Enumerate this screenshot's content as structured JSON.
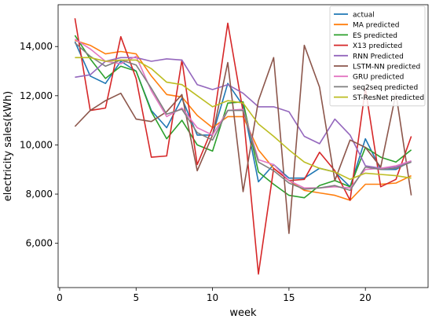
{
  "chart_data": {
    "type": "line",
    "xlabel": "week",
    "ylabel": "electricity sales(kWh)",
    "xlim": [
      -0.1,
      24.1
    ],
    "ylim": [
      4200,
      15700
    ],
    "xticks": [
      0,
      5,
      10,
      15,
      20
    ],
    "yticks": [
      6000,
      8000,
      10000,
      12000,
      14000
    ],
    "xtick_labels": [
      "0",
      "5",
      "10",
      "15",
      "20"
    ],
    "ytick_labels": [
      "6,000",
      "8,000",
      "10,000",
      "12,000",
      "14,000"
    ],
    "grid": false,
    "legend_position": "top-right",
    "x": [
      1,
      2,
      3,
      4,
      5,
      6,
      7,
      8,
      9,
      10,
      11,
      12,
      13,
      14,
      15,
      16,
      17,
      18,
      19,
      20,
      21,
      22,
      23
    ],
    "series": [
      {
        "name": "actual",
        "color": "#1f77b4",
        "values": [
          14200,
          12800,
          12500,
          13400,
          13000,
          11400,
          10700,
          11900,
          10400,
          10400,
          12500,
          11600,
          8500,
          9200,
          8650,
          8650,
          9050,
          8900,
          8300,
          10250,
          9000,
          9000,
          9350
        ]
      },
      {
        "name": "MA predicted",
        "color": "#ff7f0e",
        "values": [
          14250,
          14050,
          13700,
          13800,
          13700,
          12800,
          12050,
          11950,
          11200,
          10700,
          11150,
          11150,
          9800,
          9050,
          8550,
          8150,
          8050,
          7950,
          7750,
          8400,
          8400,
          8450,
          8750
        ]
      },
      {
        "name": "ES predicted",
        "color": "#2ca02c",
        "values": [
          14450,
          13500,
          12700,
          13200,
          13000,
          11350,
          10250,
          11000,
          10000,
          9750,
          11700,
          11750,
          8900,
          8400,
          7950,
          7850,
          8350,
          8550,
          8300,
          9900,
          9500,
          9300,
          9800
        ]
      },
      {
        "name": "X13 predicted",
        "color": "#d62728",
        "values": [
          15150,
          11400,
          11500,
          14400,
          12700,
          9500,
          9550,
          13450,
          9200,
          10700,
          14950,
          11350,
          4750,
          9050,
          8550,
          8600,
          9700,
          8950,
          7750,
          12300,
          8300,
          8600,
          10350
        ]
      },
      {
        "name": "RNN Predicted",
        "color": "#9467bd",
        "values": [
          12750,
          12850,
          13400,
          13550,
          13550,
          13400,
          13500,
          13450,
          12450,
          12250,
          12450,
          12100,
          11550,
          11550,
          11350,
          10350,
          10050,
          11050,
          10400,
          9150,
          9050,
          9100,
          9300
        ]
      },
      {
        "name": "LSTM-NN predicted",
        "color": "#8c564b",
        "values": [
          10750,
          11400,
          11800,
          12100,
          11050,
          10950,
          11350,
          12050,
          8950,
          10400,
          13350,
          8100,
          11800,
          13550,
          6400,
          14050,
          12350,
          8550,
          10200,
          9900,
          9100,
          12100,
          7950
        ]
      },
      {
        "name": "GRU predicted",
        "color": "#e377c2",
        "values": [
          14300,
          13900,
          13400,
          13300,
          13600,
          12200,
          11150,
          11500,
          10700,
          10400,
          11400,
          11450,
          9400,
          9200,
          8550,
          8250,
          8250,
          8300,
          8250,
          9000,
          9050,
          9150,
          9350
        ]
      },
      {
        "name": "seq2seq predicted",
        "color": "#7f7f7f",
        "values": [
          14150,
          13600,
          13200,
          13450,
          13250,
          12300,
          11250,
          11450,
          10500,
          10200,
          11400,
          11400,
          9300,
          8950,
          8450,
          8200,
          8250,
          8350,
          8150,
          9100,
          9000,
          9050,
          9300
        ]
      },
      {
        "name": "ST-ResNet predicted",
        "color": "#bcbd22",
        "values": [
          13550,
          13550,
          13400,
          13450,
          13450,
          13100,
          12550,
          12450,
          12000,
          11550,
          11800,
          11700,
          10850,
          10350,
          9800,
          9300,
          9050,
          8900,
          8600,
          8850,
          8800,
          8750,
          8650
        ]
      }
    ]
  }
}
